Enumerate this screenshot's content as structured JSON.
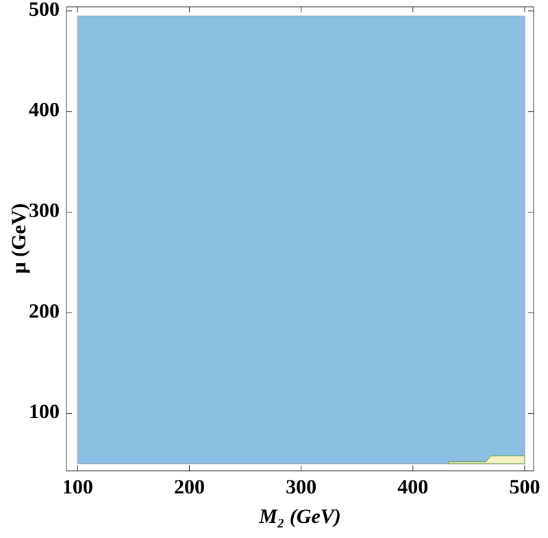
{
  "chart_data": {
    "type": "region",
    "x_label": "M₂ (GeV)",
    "y_label": "μ (GeV)",
    "xlim": [
      90,
      508
    ],
    "ylim": [
      43,
      504
    ],
    "xticks": [
      100,
      200,
      300,
      400,
      500
    ],
    "yticks": [
      100,
      200,
      300,
      400,
      500
    ],
    "regions": [
      {
        "color": "#8bbfe3",
        "x": [
          100,
          500,
          500,
          100
        ],
        "y": [
          50,
          50,
          495,
          495
        ]
      },
      {
        "color": "#f7f1c6",
        "x": [
          432,
          432,
          465,
          470,
          500,
          500
        ],
        "y": [
          50,
          52,
          52,
          58,
          58,
          50
        ]
      }
    ]
  }
}
